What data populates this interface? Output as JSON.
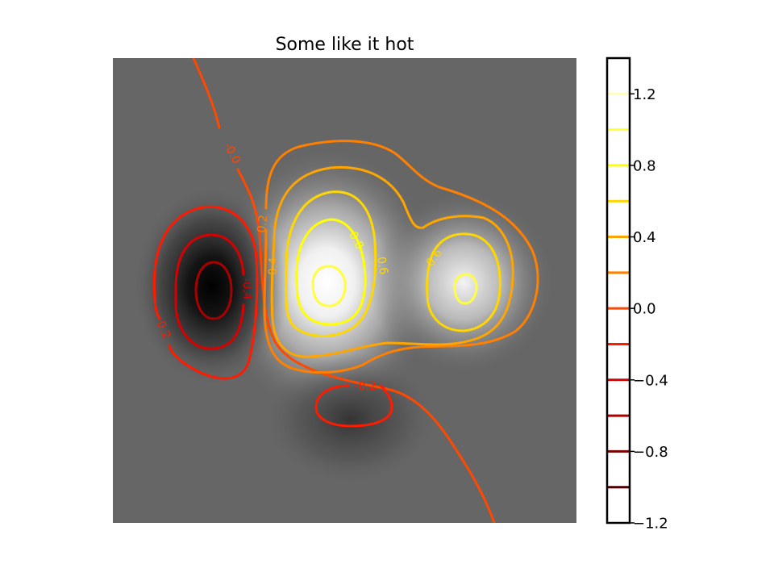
{
  "chart_data": {
    "type": "contour",
    "title": "Some like it hot",
    "background_colormap": "gray",
    "contour_colormap": "hot",
    "axes_visible": false,
    "colorbar": {
      "placement": "right",
      "range": [
        -1.2,
        1.4
      ],
      "tick_values": [
        1.2,
        0.8,
        0.4,
        0.0,
        -0.4,
        -0.8,
        -1.2
      ],
      "tick_labels": [
        "1.2",
        "0.8",
        "0.4",
        "0.0",
        "−0.4",
        "−0.8",
        "−1.2"
      ],
      "levels": [
        {
          "value": 1.2,
          "color": "#ffffb0"
        },
        {
          "value": 1.0,
          "color": "#ffff40"
        },
        {
          "value": 0.8,
          "color": "#ffff00"
        },
        {
          "value": 0.6,
          "color": "#ffd700"
        },
        {
          "value": 0.4,
          "color": "#ffa500"
        },
        {
          "value": 0.2,
          "color": "#ff8000"
        },
        {
          "value": 0.0,
          "color": "#ff4800"
        },
        {
          "value": -0.2,
          "color": "#ff1a00"
        },
        {
          "value": -0.4,
          "color": "#d80000"
        },
        {
          "value": -0.6,
          "color": "#a80000"
        },
        {
          "value": -0.8,
          "color": "#780000"
        },
        {
          "value": -1.0,
          "color": "#4a0000"
        }
      ]
    },
    "contour_labels": [
      {
        "text": "-0.0",
        "level": 0.0
      },
      {
        "text": "-0.2",
        "level": -0.2
      },
      {
        "text": "-0.4",
        "level": -0.4
      },
      {
        "text": "-0.2",
        "level": -0.2
      },
      {
        "text": "0.2",
        "level": 0.2
      },
      {
        "text": "0.4",
        "level": 0.4
      },
      {
        "text": "0.8",
        "level": 0.8
      },
      {
        "text": "0.6",
        "level": 0.6
      },
      {
        "text": "0.6",
        "level": 0.6
      }
    ]
  }
}
